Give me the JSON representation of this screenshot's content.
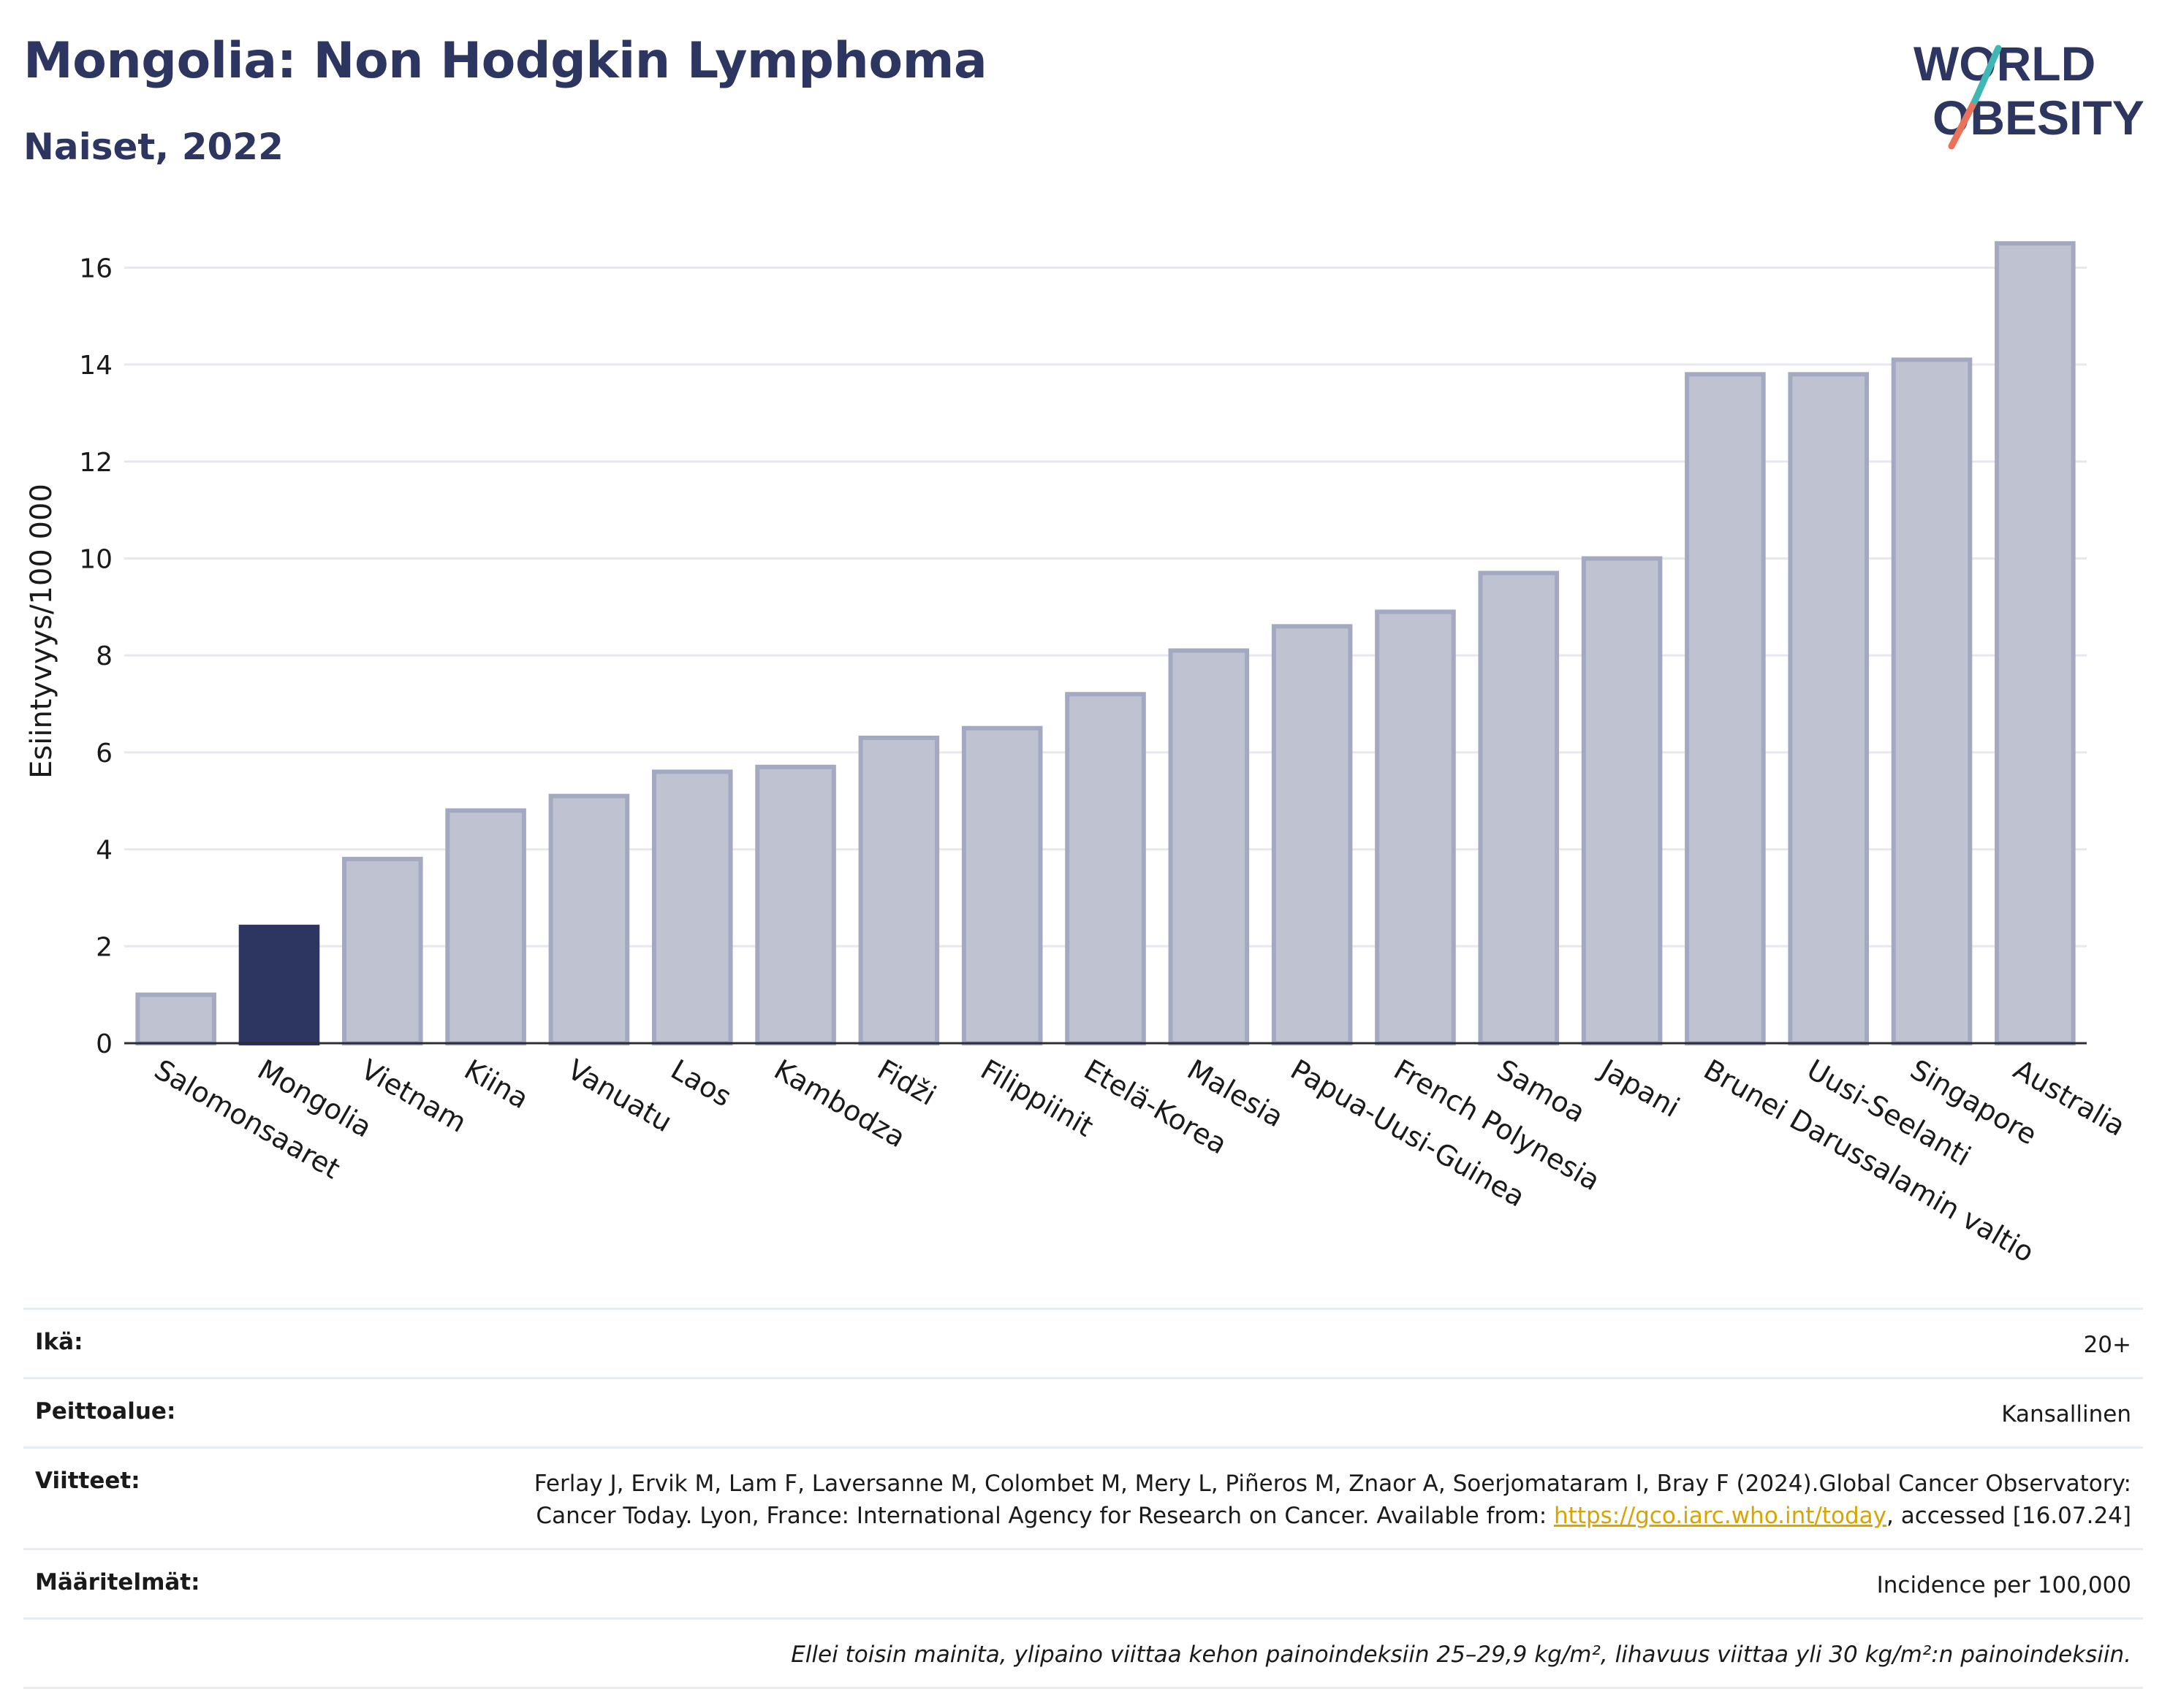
{
  "header": {
    "title": "Mongolia: Non Hodgkin Lymphoma",
    "subtitle": "Naiset, 2022"
  },
  "logo": {
    "line1": "WORLD",
    "line2": "OBESITY"
  },
  "chart_data": {
    "type": "bar",
    "ylabel": "Esiintyvyys/100 000",
    "xlabel": "",
    "ylim": [
      0,
      17
    ],
    "yticks": [
      0,
      2,
      4,
      6,
      8,
      10,
      12,
      14,
      16
    ],
    "grid": true,
    "highlight": "Mongolia",
    "colors": {
      "default": "#bfc3d1",
      "default_border": "#a3a9c0",
      "highlight": "#2d3561"
    },
    "categories": [
      "Salomonsaaret",
      "Mongolia",
      "Vietnam",
      "Kiina",
      "Vanuatu",
      "Laos",
      "Kambodza",
      "Fidži",
      "Filippiinit",
      "Etelä-Korea",
      "Malesia",
      "Papua-Uusi-Guinea",
      "French Polynesia",
      "Samoa",
      "Japani",
      "Brunei Darussalamin valtio",
      "Uusi-Seelanti",
      "Singapore",
      "Australia"
    ],
    "values": [
      1.0,
      2.4,
      3.8,
      4.8,
      5.1,
      5.6,
      5.7,
      6.3,
      6.5,
      7.2,
      8.1,
      8.6,
      8.9,
      9.7,
      10.0,
      13.8,
      13.8,
      14.1,
      16.5
    ]
  },
  "meta": {
    "age_label": "Ikä:",
    "age_value": "20+",
    "coverage_label": "Peittoalue:",
    "coverage_value": "Kansallinen",
    "refs_label": "Viitteet:",
    "refs_text_1": "Ferlay J, Ervik M, Lam F, Laversanne M, Colombet M, Mery L, Piñeros M, Znaor A, Soerjomataram I, Bray F (2024).Global Cancer Observatory: Cancer Today. Lyon, France: International Agency for Research on Cancer. Available from: ",
    "refs_link": "https://gco.iarc.who.int/today",
    "refs_text_2": ", accessed [16.07.24]",
    "defs_label": "Määritelmät:",
    "defs_value": "Incidence per 100,000",
    "note": "Ellei toisin mainita, ylipaino viittaa kehon painoindeksiin 25–29,9 kg/m², lihavuus viittaa yli 30 kg/m²:n painoindeksiin."
  }
}
